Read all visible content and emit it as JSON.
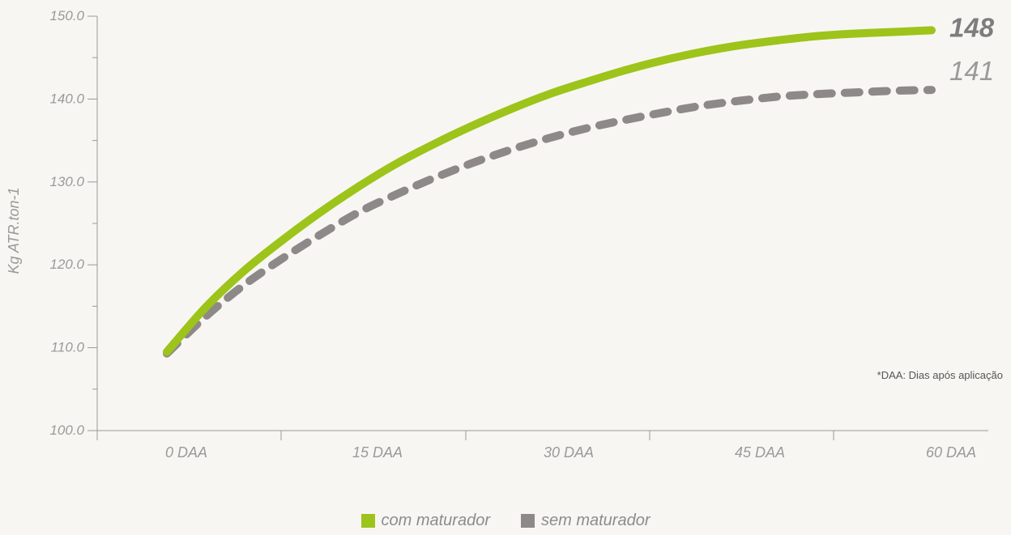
{
  "chart_data": {
    "type": "line",
    "ylabel": "Kg ATR.ton-1",
    "xlabel": "",
    "ylim": [
      100,
      150
    ],
    "y_ticks": [
      100.0,
      110.0,
      120.0,
      130.0,
      140.0,
      150.0
    ],
    "y_tick_labels": [
      "100.0",
      "110.0",
      "120.0",
      "130.0",
      "140.0",
      "150.0"
    ],
    "y_minor_step": 5,
    "categories": [
      "0 DAA",
      "15 DAA",
      "30 DAA",
      "45 DAA",
      "60 DAA"
    ],
    "x": [
      0,
      15,
      30,
      45,
      60
    ],
    "grid": false,
    "legend_position": "bottom-center",
    "series": [
      {
        "name": "com maturador",
        "color": "#9dc41a",
        "style": "solid",
        "x": [
          0,
          3,
          6,
          9,
          12,
          15,
          18,
          21,
          24,
          27,
          30,
          33,
          36,
          39,
          42,
          45,
          48,
          51,
          54,
          57,
          60
        ],
        "values": [
          109.5,
          114.8,
          119.2,
          122.9,
          126.3,
          129.4,
          132.2,
          134.6,
          136.8,
          138.8,
          140.6,
          142.1,
          143.5,
          144.7,
          145.7,
          146.5,
          147.1,
          147.6,
          147.9,
          148.1,
          148.3
        ],
        "end_label": "148"
      },
      {
        "name": "sem maturador",
        "color": "#8e8989",
        "style": "dashed",
        "x": [
          0,
          3,
          6,
          9,
          12,
          15,
          18,
          21,
          24,
          27,
          30,
          33,
          36,
          39,
          42,
          45,
          48,
          51,
          54,
          57,
          60
        ],
        "values": [
          109.3,
          113.7,
          117.5,
          120.7,
          123.6,
          126.3,
          128.5,
          130.5,
          132.3,
          133.9,
          135.3,
          136.5,
          137.5,
          138.4,
          139.2,
          139.8,
          140.3,
          140.6,
          140.8,
          141.0,
          141.1
        ],
        "end_label": "141"
      }
    ],
    "annotations": [
      "*DAA: Dias após aplicação"
    ]
  }
}
